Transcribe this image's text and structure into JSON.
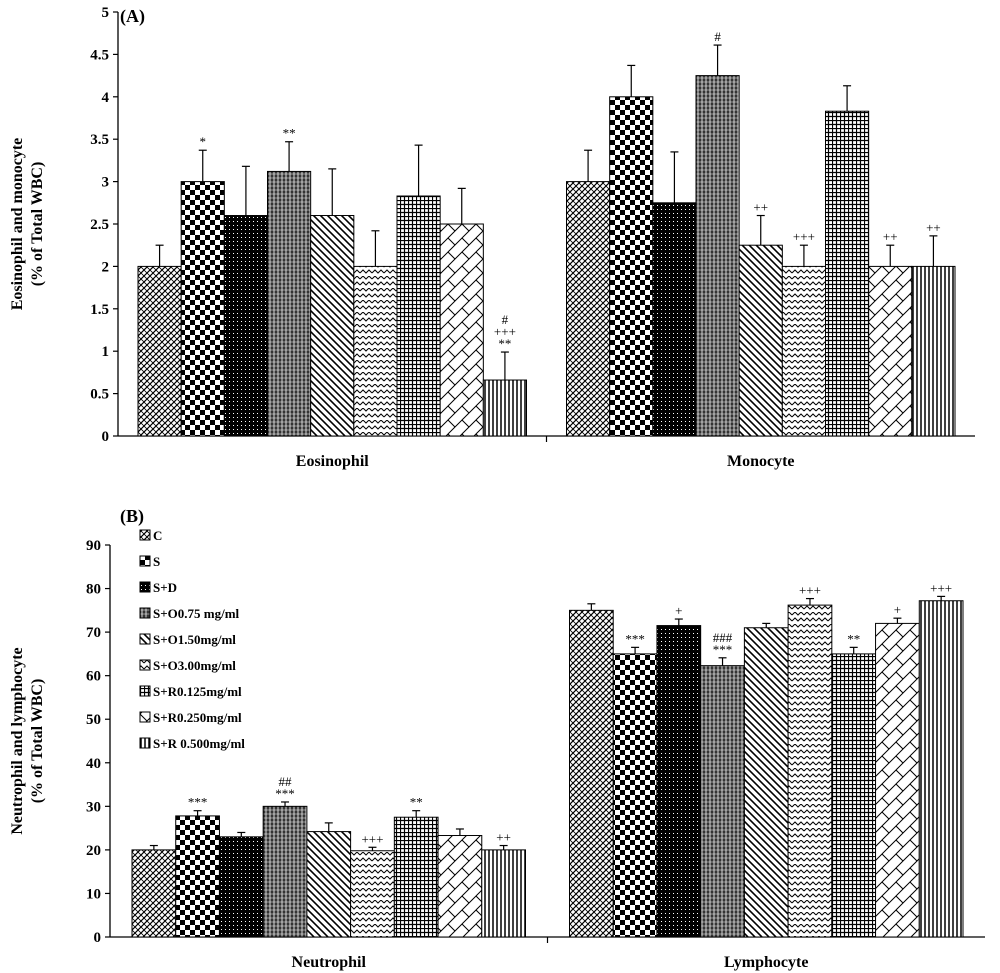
{
  "groups": [
    "C",
    "S",
    "S+D",
    "S+O0.75 mg/ml",
    "S+O1.50mg/ml",
    "S+O3.00mg/ml",
    "S+R0.125mg/ml",
    "S+R0.250mg/ml",
    "S+R 0.500mg/ml"
  ],
  "chart_data": [
    {
      "panel": "(A)",
      "type": "bar",
      "ylabel": [
        "Eosinophil and monocyte",
        "(% of Total WBC)"
      ],
      "ylim": [
        0,
        5
      ],
      "ticks": [
        "0",
        "0.5",
        "1",
        "1.5",
        "2",
        "2.5",
        "3",
        "3.5",
        "4",
        "4.5",
        "5"
      ],
      "categories": [
        "Eosinophil",
        "Monocyte"
      ],
      "series": [
        {
          "name": "C",
          "values": [
            2.0,
            3.0
          ],
          "errors": [
            0.25,
            0.37
          ],
          "sig": [
            "",
            ""
          ]
        },
        {
          "name": "S",
          "values": [
            3.0,
            4.0
          ],
          "errors": [
            0.37,
            0.37
          ],
          "sig": [
            "*",
            ""
          ]
        },
        {
          "name": "S+D",
          "values": [
            2.6,
            2.75
          ],
          "errors": [
            0.58,
            0.6
          ],
          "sig": [
            "",
            ""
          ]
        },
        {
          "name": "S+O0.75 mg/ml",
          "values": [
            3.12,
            4.25
          ],
          "errors": [
            0.35,
            0.36
          ],
          "sig": [
            "**",
            "#"
          ]
        },
        {
          "name": "S+O1.50mg/ml",
          "values": [
            2.6,
            2.25
          ],
          "errors": [
            0.55,
            0.35
          ],
          "sig": [
            "",
            "++"
          ]
        },
        {
          "name": "S+O3.00mg/ml",
          "values": [
            2.0,
            2.0
          ],
          "errors": [
            0.42,
            0.25
          ],
          "sig": [
            "",
            "+++"
          ]
        },
        {
          "name": "S+R0.125mg/ml",
          "values": [
            2.83,
            3.83
          ],
          "errors": [
            0.6,
            0.3
          ],
          "sig": [
            "",
            ""
          ]
        },
        {
          "name": "S+R0.250mg/ml",
          "values": [
            2.5,
            2.0
          ],
          "errors": [
            0.42,
            0.25
          ],
          "sig": [
            "",
            "++"
          ]
        },
        {
          "name": "S+R 0.500mg/ml",
          "values": [
            0.66,
            2.0
          ],
          "errors": [
            0.33,
            0.36
          ],
          "sig": [
            "#\n+++\n**",
            "++"
          ]
        }
      ]
    },
    {
      "panel": "(B)",
      "type": "bar",
      "ylabel": [
        "Neutrophil and lymphocyte",
        "(% of Total WBC)"
      ],
      "ylim": [
        0,
        90
      ],
      "ticks": [
        "0",
        "10",
        "20",
        "30",
        "40",
        "50",
        "60",
        "70",
        "80",
        "90"
      ],
      "categories": [
        "Neutrophil",
        "Lymphocyte"
      ],
      "series": [
        {
          "name": "C",
          "values": [
            20.0,
            75.0
          ],
          "errors": [
            1.0,
            1.5
          ],
          "sig": [
            "",
            ""
          ]
        },
        {
          "name": "S",
          "values": [
            27.8,
            65.0
          ],
          "errors": [
            1.2,
            1.5
          ],
          "sig": [
            "***",
            "***"
          ]
        },
        {
          "name": "S+D",
          "values": [
            23.0,
            71.5
          ],
          "errors": [
            1.0,
            1.5
          ],
          "sig": [
            "",
            "+"
          ]
        },
        {
          "name": "S+O0.75 mg/ml",
          "values": [
            30.0,
            62.3
          ],
          "errors": [
            1.0,
            1.8
          ],
          "sig": [
            "##\n***",
            "###\n***"
          ]
        },
        {
          "name": "S+O1.50mg/ml",
          "values": [
            24.2,
            71.0
          ],
          "errors": [
            2.0,
            1.0
          ],
          "sig": [
            "",
            ""
          ]
        },
        {
          "name": "S+O3.00mg/ml",
          "values": [
            19.8,
            76.2
          ],
          "errors": [
            0.8,
            1.5
          ],
          "sig": [
            "+++",
            "+++"
          ]
        },
        {
          "name": "S+R0.125mg/ml",
          "values": [
            27.5,
            65.0
          ],
          "errors": [
            1.5,
            1.5
          ],
          "sig": [
            "**",
            "**"
          ]
        },
        {
          "name": "S+R0.250mg/ml",
          "values": [
            23.3,
            72.0
          ],
          "errors": [
            1.5,
            1.2
          ],
          "sig": [
            "",
            "+"
          ]
        },
        {
          "name": "S+R 0.500mg/ml",
          "values": [
            20.0,
            77.2
          ],
          "errors": [
            1.0,
            1.0
          ],
          "sig": [
            "++",
            "+++"
          ]
        }
      ]
    }
  ]
}
